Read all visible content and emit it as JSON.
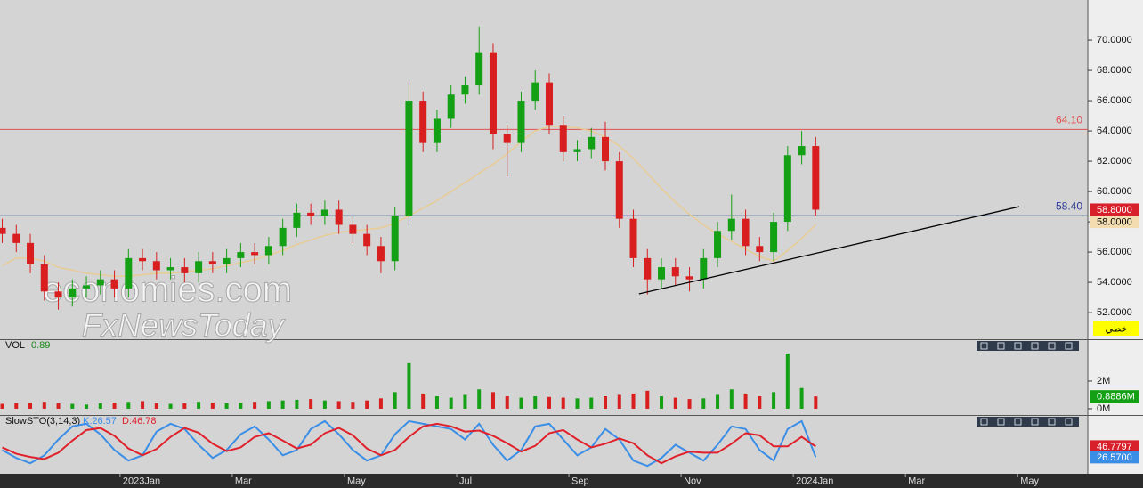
{
  "chart_data": [
    {
      "type": "candlestick",
      "x": [
        -2.1,
        -1.85,
        -1.6,
        -1.35,
        -1.1,
        -0.85,
        -0.6,
        -0.35,
        -0.1,
        0.15,
        0.4,
        0.65,
        0.9,
        1.15,
        1.4,
        1.65,
        1.9,
        2.15,
        2.4,
        2.65,
        2.9,
        3.15,
        3.4,
        3.65,
        3.9,
        4.15,
        4.4,
        4.65,
        4.9,
        5.15,
        5.4,
        5.65,
        5.9,
        6.15,
        6.4,
        6.65,
        6.9,
        7.15,
        7.4,
        7.65,
        7.9,
        8.15,
        8.4,
        8.65,
        8.9,
        9.15,
        9.4,
        9.65,
        9.9,
        10.15,
        10.4,
        10.65,
        10.9,
        11.15,
        11.4,
        11.65,
        11.9,
        12.15,
        12.4
      ],
      "open": [
        57.6,
        57.2,
        56.6,
        55.2,
        53.4,
        53.0,
        53.6,
        53.8,
        54.2,
        53.6,
        55.6,
        55.4,
        54.8,
        55.0,
        54.6,
        55.4,
        55.2,
        55.6,
        56.0,
        55.8,
        56.4,
        57.6,
        58.6,
        58.4,
        58.8,
        57.8,
        57.2,
        56.4,
        55.4,
        58.4,
        66.0,
        63.2,
        64.8,
        66.4,
        67.0,
        69.2,
        63.8,
        63.2,
        66.0,
        67.2,
        64.4,
        62.6,
        62.8,
        63.6,
        62.0,
        58.2,
        55.6,
        54.2,
        55.0,
        54.4,
        54.2,
        55.6,
        57.4,
        58.2,
        56.4,
        56.0,
        58.0,
        62.4,
        63.0
      ],
      "high": [
        58.2,
        57.8,
        57.2,
        55.8,
        54.0,
        54.2,
        54.4,
        54.8,
        54.8,
        56.2,
        56.2,
        56.0,
        55.6,
        55.6,
        56.0,
        56.0,
        56.2,
        56.6,
        56.6,
        57.0,
        58.2,
        59.2,
        59.2,
        59.4,
        59.4,
        58.4,
        57.8,
        57.0,
        59.0,
        67.2,
        66.6,
        65.4,
        67.0,
        67.6,
        70.9,
        69.8,
        64.4,
        66.6,
        68.0,
        67.8,
        65.0,
        63.4,
        64.2,
        64.6,
        62.6,
        58.8,
        56.2,
        55.6,
        55.6,
        55.0,
        56.2,
        58.0,
        59.8,
        58.8,
        57.0,
        58.6,
        63.0,
        64.0,
        63.6
      ],
      "low": [
        56.6,
        56.0,
        54.6,
        52.8,
        52.2,
        52.4,
        53.0,
        53.2,
        53.0,
        53.0,
        54.8,
        54.2,
        54.2,
        54.0,
        54.0,
        54.6,
        54.6,
        55.0,
        55.2,
        55.2,
        55.8,
        57.0,
        57.8,
        57.8,
        57.2,
        56.6,
        55.8,
        54.6,
        54.8,
        57.8,
        62.6,
        62.6,
        64.2,
        65.8,
        66.4,
        62.8,
        61.0,
        62.6,
        65.4,
        63.8,
        62.0,
        62.0,
        62.2,
        61.4,
        57.6,
        55.0,
        53.2,
        53.6,
        53.8,
        53.4,
        53.6,
        55.0,
        56.8,
        55.8,
        55.4,
        55.4,
        57.4,
        61.8,
        58.4
      ],
      "close": [
        57.2,
        56.6,
        55.2,
        53.4,
        53.0,
        53.6,
        53.8,
        54.2,
        53.6,
        55.6,
        55.4,
        54.8,
        55.0,
        54.6,
        55.4,
        55.2,
        55.6,
        56.0,
        55.8,
        56.4,
        57.6,
        58.6,
        58.4,
        58.8,
        57.8,
        57.2,
        56.4,
        55.4,
        58.4,
        66.0,
        63.2,
        64.8,
        66.4,
        67.0,
        69.2,
        63.8,
        63.2,
        66.0,
        67.2,
        64.4,
        62.6,
        62.8,
        63.6,
        62.0,
        58.2,
        55.6,
        54.2,
        55.0,
        54.4,
        54.2,
        55.6,
        57.4,
        58.2,
        56.4,
        56.0,
        58.0,
        62.4,
        63.0,
        58.8
      ],
      "color_up": "#14a014",
      "color_down": "#d81e1e",
      "moving_average": {
        "color": "#e8cc94",
        "values": [
          55.1,
          55.6,
          55.6,
          55.4,
          55.0,
          54.8,
          54.6,
          54.5,
          54.4,
          54.4,
          54.5,
          54.6,
          54.6,
          54.7,
          54.8,
          54.9,
          55.1,
          55.3,
          55.5,
          55.8,
          56.1,
          56.5,
          56.8,
          57.1,
          57.3,
          57.4,
          57.5,
          57.6,
          57.9,
          58.4,
          58.9,
          59.4,
          60.0,
          60.6,
          61.2,
          61.8,
          62.5,
          63.3,
          64.0,
          64.3,
          64.3,
          64.2,
          64.0,
          63.6,
          63.0,
          62.2,
          61.2,
          60.2,
          59.3,
          58.5,
          57.8,
          57.2,
          56.7,
          56.2,
          55.7,
          55.4,
          56.1,
          56.9,
          57.8
        ]
      },
      "xlim": [
        -2.14,
        17.25
      ],
      "xticks": [
        {
          "value": 0,
          "label": "2023Jan"
        },
        {
          "value": 2,
          "label": "Mar"
        },
        {
          "value": 4,
          "label": "May"
        },
        {
          "value": 6,
          "label": "Jul"
        },
        {
          "value": 8,
          "label": "Sep"
        },
        {
          "value": 10,
          "label": "Nov"
        },
        {
          "value": 12,
          "label": "2024Jan"
        },
        {
          "value": 14,
          "label": "Mar"
        },
        {
          "value": 16,
          "label": "May"
        }
      ],
      "ylim": [
        50.24,
        72.65
      ],
      "yticks": [
        {
          "value": 52,
          "label": "52.0000"
        },
        {
          "value": 54,
          "label": "54.0000"
        },
        {
          "value": 56,
          "label": "56.0000"
        },
        {
          "value": 58,
          "label": "58.0000"
        },
        {
          "value": 60,
          "label": "60.0000"
        },
        {
          "value": 62,
          "label": "62.0000"
        },
        {
          "value": 64,
          "label": "64.0000"
        },
        {
          "value": 66,
          "label": "66.0000"
        },
        {
          "value": 68,
          "label": "68.0000"
        },
        {
          "value": 70,
          "label": "70.0000"
        }
      ],
      "hlines": [
        {
          "value": 64.1,
          "label": "64.10",
          "color": "#e05050"
        },
        {
          "value": 58.4,
          "label": "58.40",
          "color": "#2a3a96"
        }
      ],
      "trendline": {
        "x": [
          9.25,
          16.03
        ],
        "y": [
          53.24,
          59.0
        ],
        "color": "#000000"
      },
      "price_tags": [
        {
          "value": 58.8,
          "label": "58.8000",
          "color": "#d8202a",
          "text_color": "#ffffff"
        },
        {
          "value": 58.0,
          "label": "58.0000",
          "color": "#f2dcb0",
          "text_color": "#000000"
        }
      ],
      "watermark": [
        "economies.com",
        "FxNewsToday"
      ],
      "style_label": "خطي"
    },
    {
      "type": "bar",
      "title": "VOL",
      "header_value": 0.89,
      "values": [
        0.35,
        0.4,
        0.45,
        0.5,
        0.4,
        0.35,
        0.3,
        0.4,
        0.45,
        0.5,
        0.55,
        0.4,
        0.35,
        0.4,
        0.5,
        0.45,
        0.4,
        0.45,
        0.5,
        0.55,
        0.6,
        0.65,
        0.7,
        0.6,
        0.55,
        0.5,
        0.6,
        0.75,
        1.2,
        3.3,
        1.1,
        0.9,
        0.8,
        1.0,
        1.4,
        1.2,
        0.9,
        0.8,
        0.9,
        0.85,
        0.8,
        0.75,
        0.8,
        0.9,
        1.0,
        1.1,
        1.3,
        0.9,
        0.8,
        0.7,
        0.75,
        1.0,
        1.4,
        1.1,
        0.9,
        1.2,
        4.0,
        1.5,
        0.89
      ],
      "ylim": [
        -0.39,
        5.03
      ],
      "yticks": [
        {
          "value": 0,
          "label": "0M"
        },
        {
          "value": 2,
          "label": "2M"
        }
      ],
      "price_tags": [
        {
          "value": 0.8886,
          "label": "0.8886M",
          "color": "#14a014",
          "text_color": "#ffffff"
        }
      ]
    },
    {
      "type": "line",
      "title": "SlowSTO(3,14,3)",
      "series": [
        {
          "name": "K",
          "header_label": "K:26.57",
          "color": "#3a8ee6",
          "values": [
            40,
            25,
            15,
            30,
            60,
            85,
            90,
            70,
            40,
            20,
            30,
            75,
            90,
            80,
            50,
            25,
            40,
            70,
            85,
            60,
            30,
            40,
            80,
            95,
            70,
            40,
            20,
            30,
            70,
            95,
            90,
            85,
            80,
            60,
            90,
            50,
            20,
            40,
            85,
            90,
            60,
            30,
            45,
            80,
            60,
            20,
            10,
            25,
            50,
            35,
            20,
            50,
            85,
            80,
            40,
            20,
            80,
            95,
            26.57
          ]
        },
        {
          "name": "D",
          "header_label": "D:46.78",
          "color": "#e0202a",
          "values": [
            45,
            33,
            27,
            23,
            35,
            58,
            78,
            82,
            67,
            43,
            30,
            42,
            65,
            82,
            73,
            52,
            38,
            45,
            65,
            72,
            58,
            43,
            50,
            72,
            82,
            68,
            43,
            30,
            40,
            65,
            85,
            90,
            85,
            75,
            77,
            67,
            53,
            37,
            48,
            72,
            78,
            60,
            45,
            52,
            62,
            53,
            30,
            15,
            28,
            37,
            35,
            35,
            52,
            72,
            68,
            47,
            47,
            65,
            46.78
          ]
        }
      ],
      "ylim": [
        -5,
        105
      ],
      "price_tags": [
        {
          "value": 46.7797,
          "label": "46.7797",
          "color": "#d8202a",
          "text_color": "#ffffff"
        },
        {
          "value": 26.57,
          "label": "26.5700",
          "color": "#3a8ee6",
          "text_color": "#ffffff"
        }
      ]
    }
  ]
}
